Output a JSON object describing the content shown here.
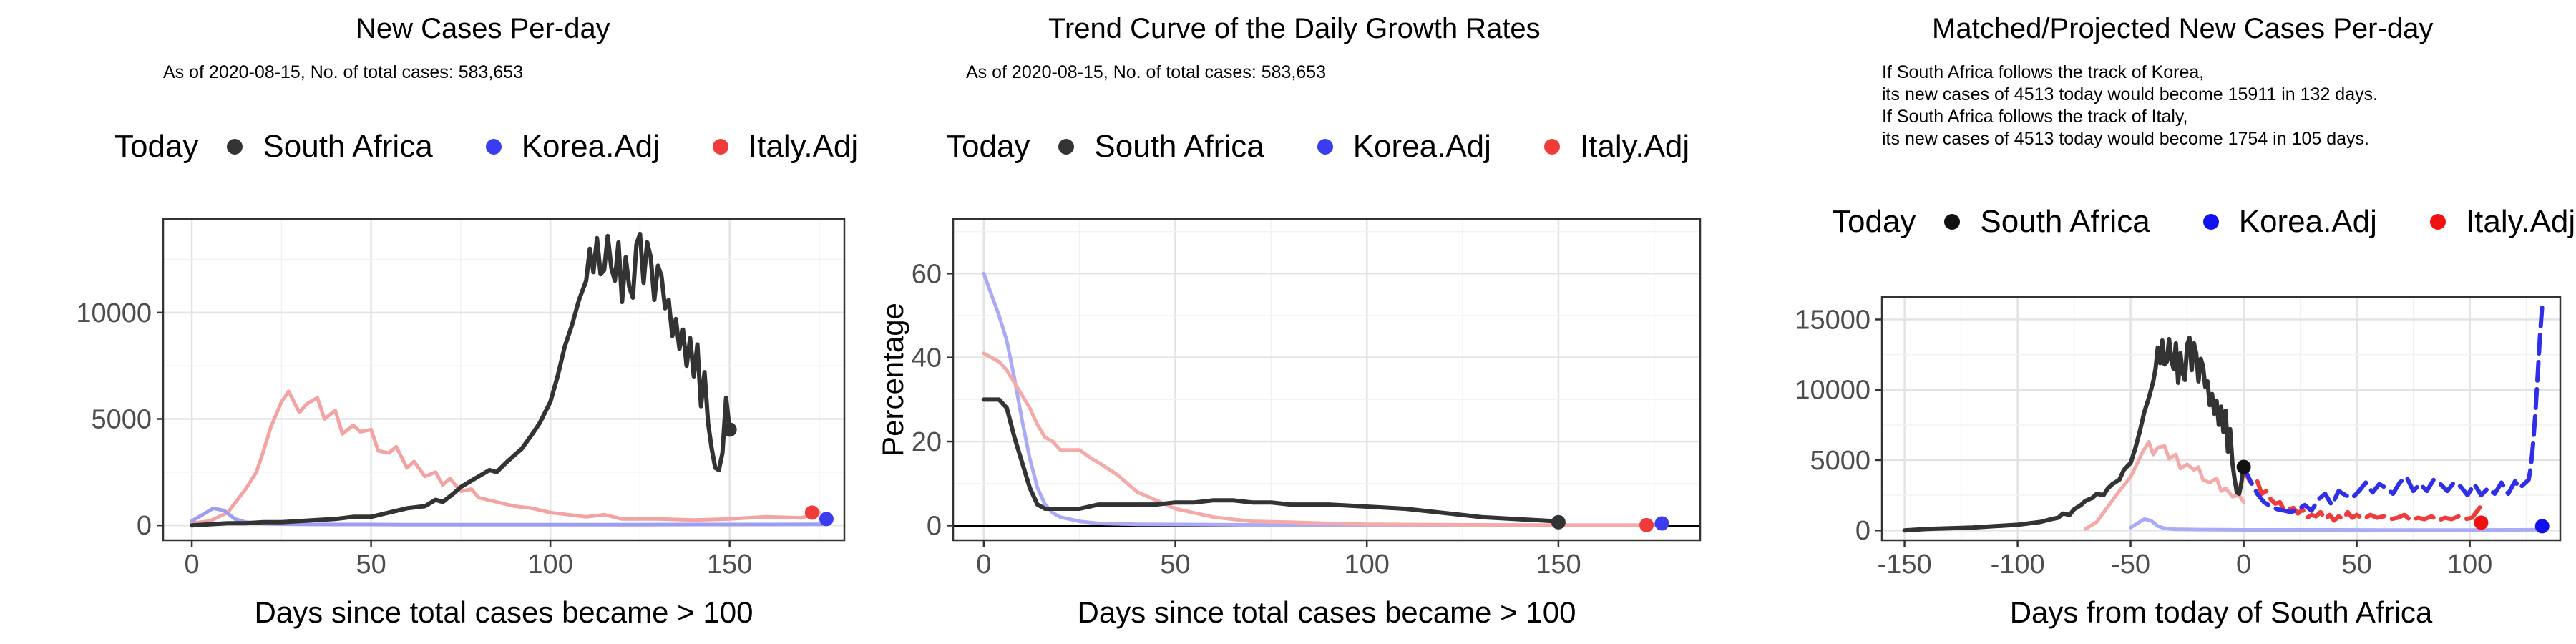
{
  "chart_data": [
    {
      "type": "line",
      "title": "New Cases Per-day",
      "subtitle": "As of 2020-08-15, No. of total cases: 583,653",
      "legend": {
        "title": "Today",
        "position": "top",
        "entries": [
          "South Africa",
          "Korea.Adj",
          "Italy.Adj"
        ]
      },
      "xlabel": "Days since total cases became > 100",
      "ylabel": "",
      "xlim": [
        -8,
        182
      ],
      "ylim": [
        -700,
        14400
      ],
      "xticks": [
        0,
        50,
        100,
        150
      ],
      "yticks": [
        0,
        5000,
        10000
      ],
      "grid": true,
      "series": [
        {
          "name": "Italy.Adj",
          "color": "#f4a3a3",
          "x": [
            0,
            5,
            10,
            15,
            18,
            20,
            22,
            25,
            27,
            30,
            32,
            35,
            37,
            40,
            42,
            45,
            47,
            50,
            52,
            55,
            57,
            60,
            62,
            65,
            68,
            70,
            72,
            75,
            78,
            80,
            85,
            90,
            95,
            100,
            105,
            110,
            115,
            120,
            130,
            140,
            150,
            160,
            170,
            175
          ],
          "y": [
            100,
            200,
            600,
            1700,
            2500,
            3500,
            4600,
            5800,
            6300,
            5300,
            5700,
            6000,
            5000,
            5400,
            4300,
            4700,
            4400,
            4500,
            3500,
            3400,
            3700,
            2700,
            3000,
            2300,
            2500,
            1900,
            2200,
            1600,
            1700,
            1300,
            1100,
            900,
            800,
            600,
            500,
            400,
            500,
            300,
            300,
            250,
            300,
            400,
            350,
            600
          ]
        },
        {
          "name": "Korea.Adj",
          "color": "#9e9ef0",
          "x": [
            0,
            3,
            6,
            9,
            12,
            15,
            20,
            25,
            30,
            40,
            50,
            60,
            70,
            80,
            100,
            120,
            140,
            160,
            177
          ],
          "y": [
            200,
            500,
            800,
            700,
            300,
            150,
            80,
            60,
            50,
            40,
            40,
            30,
            30,
            30,
            30,
            30,
            40,
            40,
            50
          ]
        },
        {
          "name": "South Africa",
          "color": "#333333",
          "x": [
            0,
            5,
            10,
            15,
            20,
            25,
            30,
            35,
            40,
            45,
            50,
            55,
            60,
            65,
            68,
            70,
            73,
            75,
            78,
            80,
            83,
            85,
            88,
            90,
            92,
            95,
            97,
            100,
            102,
            104,
            106,
            108,
            110,
            111,
            112,
            113,
            114,
            115,
            116,
            117,
            118,
            119,
            120,
            121,
            122,
            123,
            124,
            125,
            126,
            127,
            128,
            129,
            130,
            131,
            132,
            133,
            134,
            135,
            136,
            137,
            138,
            139,
            140,
            141,
            142,
            143,
            144,
            145,
            146,
            147,
            148,
            149,
            150
          ],
          "y": [
            0,
            50,
            100,
            100,
            150,
            150,
            200,
            250,
            300,
            400,
            400,
            600,
            800,
            900,
            1200,
            1100,
            1500,
            1800,
            2100,
            2300,
            2600,
            2500,
            3000,
            3300,
            3600,
            4300,
            4800,
            5800,
            7000,
            8400,
            9400,
            10600,
            11500,
            13000,
            11900,
            13500,
            11800,
            12000,
            13600,
            12100,
            11500,
            13300,
            10500,
            12600,
            11200,
            10700,
            13200,
            13700,
            11400,
            13300,
            12600,
            10600,
            12200,
            11700,
            10200,
            10600,
            8900,
            9700,
            8300,
            9200,
            7500,
            8800,
            7000,
            8500,
            5600,
            7200,
            4800,
            3600,
            2700,
            2600,
            3400,
            6000,
            4500
          ]
        }
      ],
      "today": [
        {
          "name": "South Africa",
          "x": 150,
          "y": 4500,
          "color": "#333333"
        },
        {
          "name": "Italy.Adj",
          "x": 173,
          "y": 600,
          "color": "#f03b3b"
        },
        {
          "name": "Korea.Adj",
          "x": 177,
          "y": 300,
          "color": "#3b3bf0"
        }
      ]
    },
    {
      "type": "line",
      "title": "Trend Curve of the Daily Growth Rates",
      "subtitle": "As of 2020-08-15, No. of total cases: 583,653",
      "legend": {
        "title": "Today",
        "position": "top",
        "entries": [
          "South Africa",
          "Korea.Adj",
          "Italy.Adj"
        ]
      },
      "xlabel": "Days since total cases became > 100",
      "ylabel": "Percentage",
      "xlim": [
        -8,
        187
      ],
      "ylim": [
        -3.5,
        73
      ],
      "xticks": [
        0,
        50,
        100,
        150
      ],
      "yticks": [
        0,
        20,
        40,
        60
      ],
      "grid": true,
      "hline": 0,
      "series": [
        {
          "name": "Korea.Adj",
          "color": "#aaaaf5",
          "x": [
            0,
            2,
            4,
            6,
            8,
            10,
            12,
            14,
            16,
            18,
            20,
            25,
            30,
            40,
            60,
            80,
            120,
            160,
            176
          ],
          "y": [
            60,
            55,
            50,
            44,
            35,
            25,
            16,
            9,
            5,
            3,
            2,
            1,
            0.5,
            0.3,
            0.2,
            0.1,
            0.1,
            0.1,
            0.1
          ]
        },
        {
          "name": "Italy.Adj",
          "color": "#f5aaaa",
          "x": [
            0,
            2,
            4,
            6,
            8,
            10,
            12,
            14,
            16,
            18,
            20,
            22,
            25,
            28,
            30,
            35,
            40,
            45,
            50,
            55,
            60,
            65,
            70,
            80,
            90,
            100,
            120,
            150,
            173
          ],
          "y": [
            41,
            40,
            39,
            37,
            34,
            31,
            28,
            24,
            21,
            20,
            18,
            18,
            18,
            16,
            15,
            12,
            8,
            6,
            4,
            3,
            2,
            1.5,
            1,
            0.8,
            0.5,
            0.3,
            0.2,
            0.1,
            0.1
          ]
        },
        {
          "name": "South Africa",
          "color": "#333333",
          "x": [
            0,
            2,
            4,
            6,
            8,
            10,
            12,
            14,
            16,
            18,
            20,
            25,
            30,
            35,
            40,
            45,
            50,
            55,
            60,
            65,
            70,
            75,
            80,
            90,
            100,
            110,
            120,
            130,
            140,
            150
          ],
          "y": [
            30,
            30,
            30,
            28,
            21,
            15,
            9,
            5,
            4,
            4,
            4,
            4,
            5,
            5,
            5,
            5,
            5.5,
            5.5,
            6,
            6,
            5.5,
            5.5,
            5,
            5,
            4.5,
            4,
            3,
            2,
            1.5,
            1
          ]
        }
      ],
      "today": [
        {
          "name": "South Africa",
          "x": 150,
          "y": 0.8,
          "color": "#333333"
        },
        {
          "name": "Italy.Adj",
          "x": 173,
          "y": 0.1,
          "color": "#f03b3b"
        },
        {
          "name": "Korea.Adj",
          "x": 177,
          "y": 0.5,
          "color": "#3b3bf0"
        }
      ]
    },
    {
      "type": "line",
      "title": "Matched/Projected New Cases Per-day",
      "subtitle": "If South Africa follows the track of Korea,\nits new cases of 4513 today would become 15911 in 132 days.\nIf South Africa follows the track of Italy,\nits new cases of 4513 today would become 1754 in 105 days.",
      "legend": {
        "title": "Today",
        "position": "top",
        "entries": [
          "South Africa",
          "Korea.Adj",
          "Italy.Adj"
        ]
      },
      "xlabel": "Days from today of South Africa",
      "ylabel": "",
      "xlim": [
        -160,
        140
      ],
      "ylim": [
        -700,
        16600
      ],
      "xticks": [
        -150,
        -100,
        -50,
        0,
        50,
        100
      ],
      "yticks": [
        0,
        5000,
        10000,
        15000
      ],
      "grid": true,
      "series": [
        {
          "name": "Italy.Adj (matched)",
          "color": "#f5aaaa",
          "x": [
            -70,
            -65,
            -60,
            -55,
            -50,
            -47,
            -45,
            -42,
            -40,
            -38,
            -35,
            -33,
            -30,
            -28,
            -25,
            -22,
            -20,
            -18,
            -15,
            -12,
            -10,
            -8,
            -5,
            -2,
            0
          ],
          "y": [
            100,
            600,
            1700,
            2800,
            3800,
            4800,
            5500,
            6300,
            5400,
            5900,
            6000,
            5100,
            5400,
            4400,
            4700,
            4300,
            4500,
            3600,
            3400,
            3700,
            2800,
            3000,
            2400,
            2500,
            2000
          ]
        },
        {
          "name": "Korea.Adj (matched)",
          "color": "#aaaaf5",
          "x": [
            -50,
            -47,
            -44,
            -41,
            -38,
            -35,
            -30,
            -20,
            -10,
            0,
            20,
            40,
            60,
            80,
            100,
            120,
            130
          ],
          "y": [
            200,
            500,
            800,
            700,
            300,
            150,
            80,
            60,
            50,
            40,
            40,
            40,
            30,
            30,
            30,
            40,
            50
          ]
        },
        {
          "name": "South Africa",
          "color": "#333333",
          "x": [
            -150,
            -140,
            -130,
            -120,
            -110,
            -100,
            -90,
            -85,
            -82,
            -80,
            -77,
            -75,
            -72,
            -70,
            -67,
            -65,
            -62,
            -60,
            -58,
            -55,
            -53,
            -50,
            -48,
            -46,
            -44,
            -42,
            -40,
            -39,
            -38,
            -37,
            -36,
            -35,
            -34,
            -33,
            -32,
            -31,
            -30,
            -29,
            -28,
            -27,
            -26,
            -25,
            -24,
            -23,
            -22,
            -21,
            -20,
            -19,
            -18,
            -17,
            -16,
            -15,
            -14,
            -13,
            -12,
            -11,
            -10,
            -9,
            -8,
            -7,
            -6,
            -5,
            -4,
            -3,
            -2,
            -1,
            0
          ],
          "y": [
            0,
            100,
            150,
            200,
            300,
            400,
            600,
            800,
            900,
            1200,
            1100,
            1500,
            1800,
            2100,
            2300,
            2600,
            2500,
            3000,
            3300,
            3600,
            4300,
            4800,
            5800,
            7000,
            8400,
            9400,
            10600,
            11500,
            13000,
            11900,
            13500,
            11800,
            12000,
            13600,
            12100,
            11500,
            13300,
            10500,
            12600,
            11200,
            10700,
            13200,
            13700,
            11400,
            13300,
            12600,
            10600,
            12200,
            11700,
            10200,
            10600,
            8900,
            9700,
            8300,
            9200,
            7500,
            8800,
            7000,
            8500,
            5600,
            7200,
            4800,
            3600,
            2700,
            2600,
            3400,
            4500
          ]
        },
        {
          "name": "Italy.Adj (projected)",
          "color": "#f03b3b",
          "dashed": true,
          "x": [
            0,
            2,
            4,
            6,
            8,
            10,
            12,
            14,
            16,
            18,
            20,
            22,
            24,
            26,
            28,
            30,
            32,
            34,
            36,
            38,
            40,
            42,
            44,
            46,
            48,
            50,
            53,
            56,
            59,
            62,
            65,
            68,
            71,
            74,
            77,
            80,
            83,
            86,
            89,
            92,
            95,
            98,
            101,
            105
          ],
          "y": [
            4513,
            3700,
            3200,
            3500,
            2600,
            2800,
            2200,
            1900,
            2000,
            1400,
            1500,
            1600,
            1200,
            1500,
            900,
            1100,
            1000,
            1300,
            800,
            1100,
            700,
            1000,
            800,
            1300,
            900,
            1100,
            800,
            1100,
            900,
            1000,
            800,
            900,
            1100,
            700,
            900,
            800,
            1000,
            700,
            900,
            800,
            1000,
            800,
            900,
            1754
          ]
        },
        {
          "name": "Korea.Adj (projected)",
          "color": "#2f2fe8",
          "dashed": true,
          "x": [
            0,
            3,
            6,
            9,
            12,
            15,
            18,
            21,
            24,
            27,
            30,
            33,
            36,
            39,
            42,
            45,
            48,
            51,
            54,
            57,
            60,
            63,
            66,
            69,
            72,
            75,
            78,
            81,
            84,
            87,
            90,
            93,
            96,
            99,
            102,
            105,
            108,
            111,
            114,
            117,
            120,
            122,
            124,
            126,
            127,
            128,
            129,
            130,
            131,
            132
          ],
          "y": [
            4513,
            3500,
            2600,
            2000,
            1700,
            1500,
            1400,
            1300,
            1500,
            1800,
            1400,
            2200,
            2600,
            1800,
            2800,
            2500,
            2300,
            2800,
            3400,
            2700,
            3300,
            3000,
            2600,
            3400,
            3800,
            2800,
            3300,
            2800,
            3600,
            3300,
            2800,
            3400,
            3100,
            2500,
            3300,
            2500,
            3000,
            2600,
            3400,
            2600,
            3500,
            3000,
            3300,
            3600,
            4500,
            6200,
            8300,
            11000,
            13800,
            15911
          ]
        }
      ],
      "today": [
        {
          "name": "South Africa",
          "x": 0,
          "y": 4513,
          "color": "#111111"
        },
        {
          "name": "Italy.Adj",
          "x": 105,
          "y": 550,
          "color": "#f01111"
        },
        {
          "name": "Korea.Adj",
          "x": 132,
          "y": 300,
          "color": "#1111f0"
        }
      ]
    }
  ]
}
